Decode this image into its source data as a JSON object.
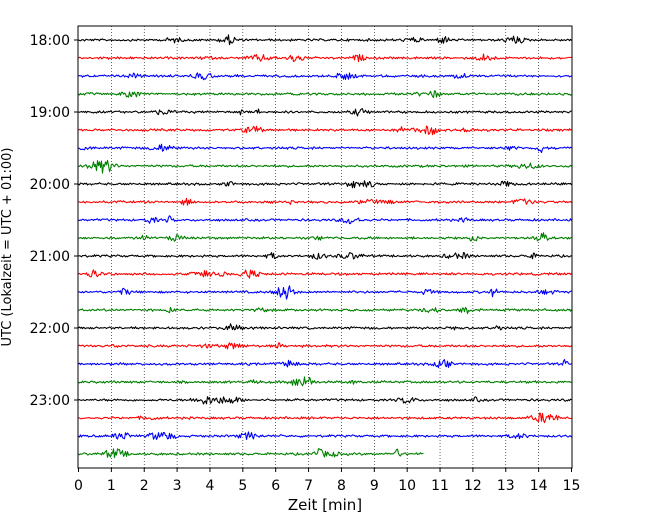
{
  "chart_data": {
    "type": "line",
    "title": "",
    "xlabel": "Zeit  [min]",
    "ylabel": "UTC (Lokalzeit = UTC + 01:00)",
    "xlim": [
      0,
      15
    ],
    "x_ticks": [
      0,
      1,
      2,
      3,
      4,
      5,
      6,
      7,
      8,
      9,
      10,
      11,
      12,
      13,
      14,
      15
    ],
    "y_tick_labels": [
      "18:00",
      "19:00",
      "20:00",
      "21:00",
      "22:00",
      "23:00"
    ],
    "grid": "vertical-dotted",
    "colors": {
      "black": "#000000",
      "red": "#ff0000",
      "blue": "#0000ff",
      "green": "#008000"
    },
    "traces": [
      {
        "start": "18:00",
        "color": "#000000",
        "end_min": 15
      },
      {
        "start": "18:15",
        "color": "#ff0000",
        "end_min": 15
      },
      {
        "start": "18:30",
        "color": "#0000ff",
        "end_min": 15
      },
      {
        "start": "18:45",
        "color": "#008000",
        "end_min": 15
      },
      {
        "start": "19:00",
        "color": "#000000",
        "end_min": 15
      },
      {
        "start": "19:15",
        "color": "#ff0000",
        "end_min": 15
      },
      {
        "start": "19:30",
        "color": "#0000ff",
        "end_min": 15
      },
      {
        "start": "19:45",
        "color": "#008000",
        "end_min": 15
      },
      {
        "start": "20:00",
        "color": "#000000",
        "end_min": 15
      },
      {
        "start": "20:15",
        "color": "#ff0000",
        "end_min": 15
      },
      {
        "start": "20:30",
        "color": "#0000ff",
        "end_min": 15
      },
      {
        "start": "20:45",
        "color": "#008000",
        "end_min": 15
      },
      {
        "start": "21:00",
        "color": "#000000",
        "end_min": 15
      },
      {
        "start": "21:15",
        "color": "#ff0000",
        "end_min": 15
      },
      {
        "start": "21:30",
        "color": "#0000ff",
        "end_min": 15
      },
      {
        "start": "21:45",
        "color": "#008000",
        "end_min": 15
      },
      {
        "start": "22:00",
        "color": "#000000",
        "end_min": 15
      },
      {
        "start": "22:15",
        "color": "#ff0000",
        "end_min": 15
      },
      {
        "start": "22:30",
        "color": "#0000ff",
        "end_min": 15
      },
      {
        "start": "22:45",
        "color": "#008000",
        "end_min": 15
      },
      {
        "start": "23:00",
        "color": "#000000",
        "end_min": 15
      },
      {
        "start": "23:15",
        "color": "#ff0000",
        "end_min": 15
      },
      {
        "start": "23:30",
        "color": "#0000ff",
        "end_min": 15
      },
      {
        "start": "23:45",
        "color": "#008000",
        "end_min": 10.5
      }
    ]
  }
}
